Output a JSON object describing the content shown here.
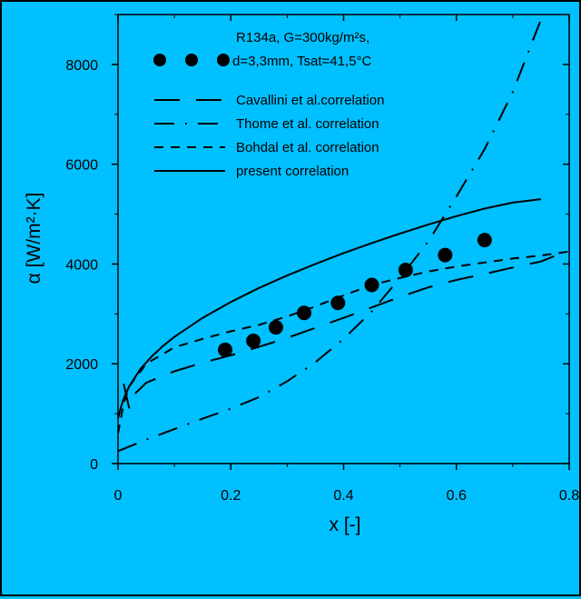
{
  "chart_data": {
    "type": "line",
    "xlabel": "x [-]",
    "ylabel": "α [W/m²·K]",
    "xlim": [
      0,
      0.8
    ],
    "ylim": [
      0,
      9000
    ],
    "xticks": [
      0,
      0.2,
      0.4,
      0.6,
      0.8
    ],
    "xtick_labels": [
      "0",
      "0.2",
      "0.4",
      "0.6",
      "0.8"
    ],
    "yticks": [
      0,
      2000,
      4000,
      6000,
      8000
    ],
    "ytick_labels": [
      "0",
      "2000",
      "4000",
      "6000",
      "8000"
    ],
    "grid": false,
    "legend_position": "top-right",
    "legend": {
      "points_label_line1": "R134a, G=300kg/m²s,",
      "points_label_line2": "d=3,3mm, Tsat=41,5°C"
    },
    "points": {
      "x": [
        0.19,
        0.24,
        0.28,
        0.33,
        0.39,
        0.45,
        0.51,
        0.58,
        0.65
      ],
      "y": [
        2280,
        2460,
        2730,
        3020,
        3220,
        3580,
        3880,
        4180,
        4480
      ]
    },
    "series": [
      {
        "name": "Cavallini et al.correlation",
        "style": "long-dash",
        "x": [
          0.01,
          0.02,
          0.03,
          0.05,
          0.08,
          0.1,
          0.15,
          0.2,
          0.25,
          0.3,
          0.35,
          0.4,
          0.45,
          0.5,
          0.55,
          0.6,
          0.65,
          0.7,
          0.75,
          0.8
        ],
        "y": [
          1600,
          1100,
          1400,
          1620,
          1760,
          1850,
          2020,
          2170,
          2340,
          2520,
          2720,
          2920,
          3130,
          3340,
          3530,
          3680,
          3800,
          3930,
          4050,
          4280
        ]
      },
      {
        "name": "Thome et al. correlation",
        "style": "dash-dot",
        "x": [
          0,
          0.05,
          0.1,
          0.15,
          0.2,
          0.25,
          0.3,
          0.35,
          0.4,
          0.45,
          0.5,
          0.55,
          0.6,
          0.65,
          0.7,
          0.75
        ],
        "y": [
          250,
          480,
          690,
          900,
          1100,
          1330,
          1650,
          2030,
          2500,
          3050,
          3720,
          4450,
          5350,
          6300,
          7450,
          8900
        ]
      },
      {
        "name": "Bohdal et al. correlation",
        "style": "short-dash",
        "x": [
          0,
          0.01,
          0.02,
          0.05,
          0.1,
          0.15,
          0.2,
          0.25,
          0.3,
          0.35,
          0.4,
          0.45,
          0.5,
          0.55,
          0.6,
          0.65,
          0.7,
          0.75,
          0.8
        ],
        "y": [
          600,
          1200,
          1550,
          2000,
          2330,
          2500,
          2650,
          2780,
          2950,
          3150,
          3370,
          3580,
          3720,
          3850,
          3950,
          4030,
          4110,
          4170,
          4250
        ]
      },
      {
        "name": "present correlation",
        "style": "solid",
        "x": [
          0,
          0.005,
          0.01,
          0.02,
          0.04,
          0.06,
          0.08,
          0.1,
          0.15,
          0.2,
          0.25,
          0.3,
          0.35,
          0.4,
          0.45,
          0.5,
          0.55,
          0.6,
          0.65,
          0.7,
          0.75
        ],
        "y": [
          900,
          1120,
          1300,
          1550,
          1900,
          2150,
          2360,
          2540,
          2920,
          3240,
          3520,
          3770,
          4000,
          4220,
          4420,
          4610,
          4790,
          4960,
          5110,
          5230,
          5300
        ]
      }
    ]
  }
}
